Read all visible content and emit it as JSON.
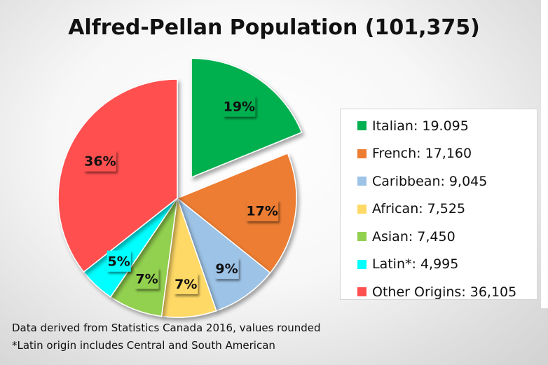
{
  "chart_data": {
    "type": "pie",
    "title": "Alfred-Pellan Population (101,375)",
    "slices": [
      {
        "legend": "Italian: 19.095",
        "value": 19095,
        "pct_label": "19%",
        "color": "#00b050",
        "exploded": true
      },
      {
        "legend": "French: 17,160",
        "value": 17160,
        "pct_label": "17%",
        "color": "#ed7d31",
        "exploded": false
      },
      {
        "legend": "Caribbean: 9,045",
        "value": 9045,
        "pct_label": "9%",
        "color": "#9dc3e6",
        "exploded": false
      },
      {
        "legend": "African: 7,525",
        "value": 7525,
        "pct_label": "7%",
        "color": "#ffd966",
        "exploded": false
      },
      {
        "legend": "Asian: 7,450",
        "value": 7450,
        "pct_label": "7%",
        "color": "#92d050",
        "exploded": false
      },
      {
        "legend": "Latin*: 4,995",
        "value": 4995,
        "pct_label": "5%",
        "color": "#00ffff",
        "exploded": false
      },
      {
        "legend": "Other Origins: 36,105",
        "value": 36105,
        "pct_label": "36%",
        "color": "#ff5050",
        "exploded": false
      }
    ],
    "legend_position": "right",
    "notes": [
      "Data derived from Statistics Canada 2016, values rounded",
      "*Latin origin includes Central and South American"
    ]
  }
}
